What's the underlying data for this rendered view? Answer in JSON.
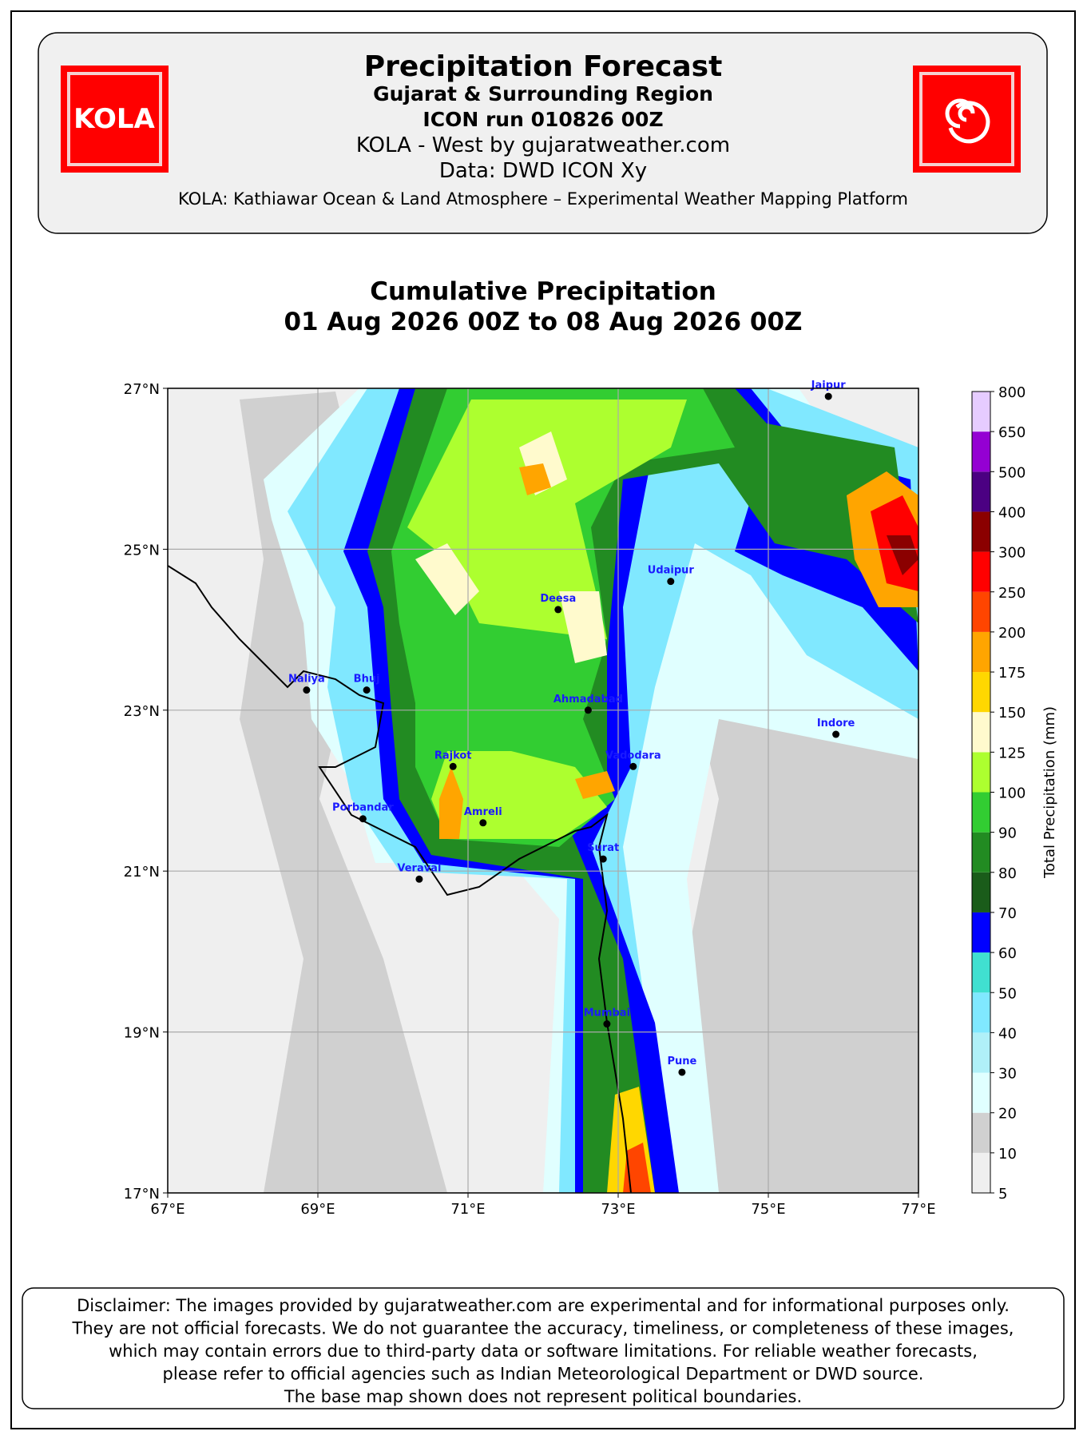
{
  "header": {
    "title": "Precipitation Forecast",
    "subtitle": "Gujarat & Surrounding Region",
    "run": "ICON run 010826 00Z",
    "source": "KOLA - West by gujaratweather.com",
    "data": "Data: DWD ICON Xy",
    "tagline": "KOLA: Kathiawar Ocean & Land Atmosphere – Experimental Weather Mapping Platform",
    "logo": "KOLA"
  },
  "map": {
    "type": "contour-map",
    "title": "Cumulative Precipitation",
    "subtitle": "01 Aug 2026 00Z to 08 Aug 2026 00Z",
    "xlim": [
      67,
      77
    ],
    "ylim": [
      17,
      27
    ],
    "xticks": [
      {
        "value": 67,
        "label": "67°E"
      },
      {
        "value": 69,
        "label": "69°E"
      },
      {
        "value": 71,
        "label": "71°E"
      },
      {
        "value": 73,
        "label": "73°E"
      },
      {
        "value": 75,
        "label": "75°E"
      },
      {
        "value": 77,
        "label": "77°E"
      }
    ],
    "yticks": [
      {
        "value": 17,
        "label": "17°N"
      },
      {
        "value": 19,
        "label": "19°N"
      },
      {
        "value": 21,
        "label": "21°N"
      },
      {
        "value": 23,
        "label": "23°N"
      },
      {
        "value": 25,
        "label": "25°N"
      },
      {
        "value": 27,
        "label": "27°N"
      }
    ],
    "grid": true,
    "cities": [
      {
        "name": "Jaipur",
        "lon": 75.8,
        "lat": 26.9
      },
      {
        "name": "Udaipur",
        "lon": 73.7,
        "lat": 24.6
      },
      {
        "name": "Deesa",
        "lon": 72.2,
        "lat": 24.25
      },
      {
        "name": "Naliya",
        "lon": 68.85,
        "lat": 23.25
      },
      {
        "name": "Bhuj",
        "lon": 69.65,
        "lat": 23.25
      },
      {
        "name": "Ahmadabad",
        "lon": 72.6,
        "lat": 23.0
      },
      {
        "name": "Indore",
        "lon": 75.9,
        "lat": 22.7
      },
      {
        "name": "Rajkot",
        "lon": 70.8,
        "lat": 22.3
      },
      {
        "name": "Vadodara",
        "lon": 73.2,
        "lat": 22.3
      },
      {
        "name": "Porbandar",
        "lon": 69.6,
        "lat": 21.65
      },
      {
        "name": "Amreli",
        "lon": 71.2,
        "lat": 21.6
      },
      {
        "name": "Surat",
        "lon": 72.8,
        "lat": 21.15
      },
      {
        "name": "Veraval",
        "lon": 70.35,
        "lat": 20.9
      },
      {
        "name": "Mumbai",
        "lon": 72.85,
        "lat": 19.1
      },
      {
        "name": "Pune",
        "lon": 73.85,
        "lat": 18.5
      }
    ],
    "colorbar": {
      "label": "Total Precipitation (mm)",
      "levels": [
        5,
        10,
        20,
        30,
        40,
        50,
        60,
        70,
        80,
        90,
        100,
        125,
        150,
        175,
        200,
        250,
        300,
        400,
        500,
        650,
        800
      ],
      "colors": [
        "#efefef",
        "#d0d0d0",
        "#e0ffff",
        "#b0f0f8",
        "#80e8ff",
        "#40e0d0",
        "#0000ff",
        "#1a5c1a",
        "#228b22",
        "#32cd32",
        "#adff2f",
        "#fffacd",
        "#ffd700",
        "#ffa500",
        "#ff4500",
        "#ff0000",
        "#8b0000",
        "#4b0082",
        "#9400d3",
        "#e6ccff"
      ]
    }
  },
  "disclaimer": [
    "Disclaimer: The images provided by gujaratweather.com are experimental and for informational purposes only.",
    "They are not official forecasts. We do not guarantee the accuracy, timeliness, or completeness of these images,",
    "which may contain errors due to third-party data or software limitations. For reliable weather forecasts,",
    "please refer to official agencies such as Indian Meteorological Department or DWD source.",
    "The base map shown does not represent political boundaries."
  ]
}
